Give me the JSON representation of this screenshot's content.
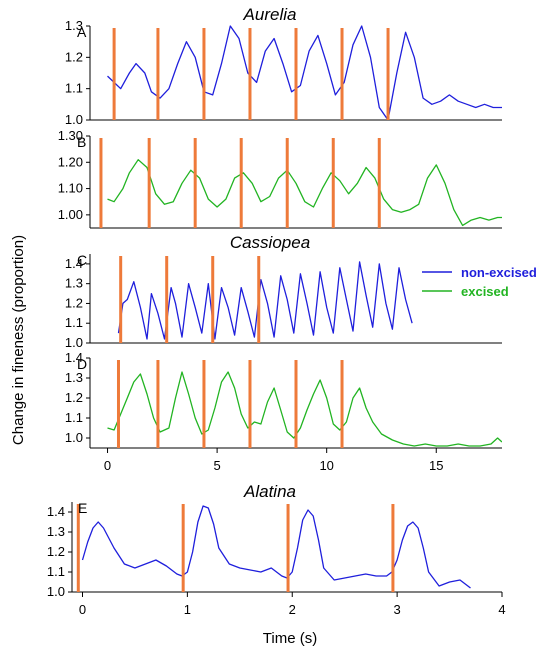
{
  "figure": {
    "ylabel": "Change in fineness (proportion)",
    "xlabel": "Time (s)",
    "species": [
      "Aurelia",
      "Cassiopea",
      "Alatina"
    ]
  },
  "legend": [
    {
      "label": "non-excised",
      "color": "#1f1fdc"
    },
    {
      "label": "excised",
      "color": "#22b422"
    }
  ],
  "colors": {
    "non_excised": "#1f1fdc",
    "excised": "#22b422",
    "stimulus": "#ee7a3a"
  },
  "chart_data": [
    {
      "type": "line",
      "panel": "A",
      "species": "Aurelia",
      "series": "non-excised",
      "xlim": [
        -0.8,
        18
      ],
      "ylim": [
        1.0,
        1.3
      ],
      "yticks": [
        "1.0",
        "1.1",
        "1.2",
        "1.3"
      ],
      "stimuli": [
        0.3,
        2.3,
        4.4,
        6.5,
        8.6,
        10.7,
        12.8
      ],
      "x": [
        0,
        0.3,
        0.6,
        1.0,
        1.3,
        1.7,
        2.0,
        2.4,
        2.8,
        3.2,
        3.6,
        4.0,
        4.4,
        4.8,
        5.2,
        5.6,
        6.0,
        6.4,
        6.8,
        7.2,
        7.6,
        8.0,
        8.4,
        8.8,
        9.2,
        9.6,
        10.0,
        10.4,
        10.8,
        11.2,
        11.6,
        12.0,
        12.4,
        12.8,
        13.2,
        13.6,
        14.0,
        14.4,
        14.8,
        15.2,
        15.6,
        16.0,
        16.4,
        16.8,
        17.2,
        17.6,
        18.0
      ],
      "y": [
        1.14,
        1.12,
        1.1,
        1.15,
        1.18,
        1.15,
        1.09,
        1.07,
        1.1,
        1.18,
        1.25,
        1.2,
        1.09,
        1.08,
        1.18,
        1.3,
        1.26,
        1.15,
        1.12,
        1.22,
        1.26,
        1.18,
        1.09,
        1.11,
        1.22,
        1.27,
        1.18,
        1.08,
        1.12,
        1.24,
        1.3,
        1.2,
        1.04,
        1.0,
        1.15,
        1.28,
        1.2,
        1.07,
        1.05,
        1.06,
        1.08,
        1.06,
        1.05,
        1.04,
        1.05,
        1.04,
        1.04
      ]
    },
    {
      "type": "line",
      "panel": "B",
      "species": "Aurelia",
      "series": "excised",
      "xlim": [
        -0.8,
        18
      ],
      "ylim": [
        0.95,
        1.3
      ],
      "yticks": [
        "1.00",
        "1.10",
        "1.20",
        "1.30"
      ],
      "stimuli": [
        -0.3,
        1.9,
        4.0,
        6.1,
        8.2,
        10.3,
        12.4
      ],
      "x": [
        0,
        0.3,
        0.7,
        1.0,
        1.4,
        1.8,
        2.2,
        2.6,
        3.0,
        3.4,
        3.8,
        4.2,
        4.6,
        5.0,
        5.4,
        5.8,
        6.2,
        6.6,
        7.0,
        7.4,
        7.8,
        8.2,
        8.6,
        9.0,
        9.4,
        9.8,
        10.2,
        10.6,
        11.0,
        11.4,
        11.8,
        12.2,
        12.6,
        13.0,
        13.4,
        13.8,
        14.2,
        14.6,
        15.0,
        15.4,
        15.8,
        16.2,
        16.6,
        17.0,
        17.4,
        17.8,
        18.0
      ],
      "y": [
        1.06,
        1.05,
        1.1,
        1.16,
        1.21,
        1.18,
        1.08,
        1.04,
        1.05,
        1.12,
        1.17,
        1.14,
        1.06,
        1.03,
        1.06,
        1.14,
        1.16,
        1.12,
        1.05,
        1.07,
        1.14,
        1.17,
        1.12,
        1.05,
        1.03,
        1.1,
        1.16,
        1.13,
        1.08,
        1.12,
        1.18,
        1.14,
        1.06,
        1.02,
        1.01,
        1.02,
        1.04,
        1.14,
        1.19,
        1.12,
        1.02,
        0.96,
        0.98,
        0.99,
        0.98,
        0.99,
        0.99
      ]
    },
    {
      "type": "line",
      "panel": "C",
      "species": "Cassiopea",
      "series": "non-excised",
      "xlim": [
        -0.8,
        18
      ],
      "ylim": [
        1.0,
        1.45
      ],
      "yticks": [
        "1.0",
        "1.1",
        "1.2",
        "1.3",
        "1.4"
      ],
      "stimuli": [
        0.6,
        2.7,
        4.8,
        6.9
      ],
      "x": [
        0.5,
        0.7,
        0.9,
        1.2,
        1.5,
        1.8,
        2.0,
        2.3,
        2.6,
        2.9,
        3.1,
        3.4,
        3.7,
        4.0,
        4.3,
        4.6,
        4.9,
        5.2,
        5.5,
        5.8,
        6.1,
        6.4,
        6.7,
        7.0,
        7.3,
        7.6,
        7.9,
        8.2,
        8.5,
        8.8,
        9.1,
        9.4,
        9.7,
        10.0,
        10.3,
        10.6,
        10.9,
        11.2,
        11.5,
        11.8,
        12.1,
        12.4,
        12.7,
        13.0,
        13.3,
        13.6,
        13.9
      ],
      "y": [
        1.05,
        1.2,
        1.22,
        1.31,
        1.18,
        1.02,
        1.25,
        1.15,
        1.02,
        1.28,
        1.2,
        1.03,
        1.3,
        1.18,
        1.05,
        1.3,
        1.02,
        1.28,
        1.18,
        1.04,
        1.28,
        1.16,
        1.03,
        1.32,
        1.2,
        1.03,
        1.34,
        1.22,
        1.05,
        1.35,
        1.2,
        1.04,
        1.36,
        1.18,
        1.05,
        1.38,
        1.22,
        1.06,
        1.41,
        1.24,
        1.08,
        1.4,
        1.2,
        1.07,
        1.38,
        1.22,
        1.1
      ]
    },
    {
      "type": "line",
      "panel": "D",
      "species": "Cassiopea",
      "series": "excised",
      "xlim": [
        -0.8,
        18
      ],
      "ylim": [
        0.95,
        1.4
      ],
      "yticks": [
        "1.0",
        "1.1",
        "1.2",
        "1.3",
        "1.4"
      ],
      "stimuli": [
        0.5,
        2.3,
        4.4,
        6.5,
        8.6,
        10.7
      ],
      "x": [
        0,
        0.3,
        0.6,
        0.9,
        1.2,
        1.5,
        1.8,
        2.1,
        2.4,
        2.8,
        3.1,
        3.4,
        3.7,
        4.0,
        4.3,
        4.6,
        4.9,
        5.2,
        5.5,
        5.8,
        6.1,
        6.4,
        6.7,
        7.0,
        7.3,
        7.6,
        7.9,
        8.2,
        8.5,
        8.8,
        9.1,
        9.4,
        9.7,
        10.0,
        10.3,
        10.6,
        10.9,
        11.2,
        11.5,
        11.8,
        12.1,
        12.5,
        13.0,
        13.5,
        14.0,
        14.5,
        15.0,
        15.5,
        16.0,
        16.5,
        17.0,
        17.5,
        17.8,
        18.0
      ],
      "y": [
        1.05,
        1.04,
        1.12,
        1.2,
        1.28,
        1.32,
        1.22,
        1.1,
        1.03,
        1.05,
        1.2,
        1.33,
        1.22,
        1.1,
        1.02,
        1.04,
        1.15,
        1.28,
        1.33,
        1.25,
        1.12,
        1.05,
        1.08,
        1.07,
        1.18,
        1.25,
        1.14,
        1.03,
        1.0,
        1.05,
        1.14,
        1.22,
        1.29,
        1.2,
        1.07,
        1.04,
        1.08,
        1.2,
        1.25,
        1.15,
        1.08,
        1.02,
        0.99,
        0.97,
        0.96,
        0.97,
        0.96,
        0.96,
        0.97,
        0.96,
        0.96,
        0.97,
        1.0,
        0.98
      ]
    },
    {
      "type": "line",
      "panel": "E",
      "species": "Alatina",
      "series": "non-excised",
      "xlim": [
        -0.1,
        4.0
      ],
      "ylim": [
        1.0,
        1.45
      ],
      "xticks": [
        "0",
        "1",
        "2",
        "3",
        "4"
      ],
      "yticks": [
        "1.0",
        "1.1",
        "1.2",
        "1.3",
        "1.4"
      ],
      "stimuli": [
        -0.04,
        0.96,
        1.96,
        2.96
      ],
      "x": [
        0,
        0.05,
        0.1,
        0.15,
        0.2,
        0.3,
        0.4,
        0.5,
        0.6,
        0.7,
        0.8,
        0.9,
        0.95,
        1.0,
        1.05,
        1.1,
        1.15,
        1.2,
        1.25,
        1.3,
        1.4,
        1.5,
        1.6,
        1.7,
        1.8,
        1.9,
        1.95,
        2.0,
        2.05,
        2.1,
        2.15,
        2.2,
        2.25,
        2.3,
        2.4,
        2.5,
        2.6,
        2.7,
        2.8,
        2.9,
        2.95,
        3.0,
        3.05,
        3.1,
        3.15,
        3.2,
        3.25,
        3.3,
        3.4,
        3.5,
        3.6,
        3.7
      ],
      "y": [
        1.16,
        1.25,
        1.32,
        1.35,
        1.32,
        1.22,
        1.14,
        1.12,
        1.14,
        1.16,
        1.13,
        1.09,
        1.08,
        1.1,
        1.2,
        1.35,
        1.43,
        1.42,
        1.34,
        1.22,
        1.14,
        1.12,
        1.11,
        1.1,
        1.12,
        1.08,
        1.07,
        1.1,
        1.22,
        1.36,
        1.41,
        1.38,
        1.26,
        1.12,
        1.06,
        1.07,
        1.08,
        1.09,
        1.08,
        1.08,
        1.1,
        1.16,
        1.26,
        1.33,
        1.35,
        1.32,
        1.22,
        1.1,
        1.03,
        1.05,
        1.06,
        1.02
      ]
    }
  ],
  "shared_xaxis": {
    "xticks": [
      "0",
      "5",
      "10",
      "15"
    ],
    "xtick_values": [
      0,
      5,
      10,
      15
    ]
  }
}
